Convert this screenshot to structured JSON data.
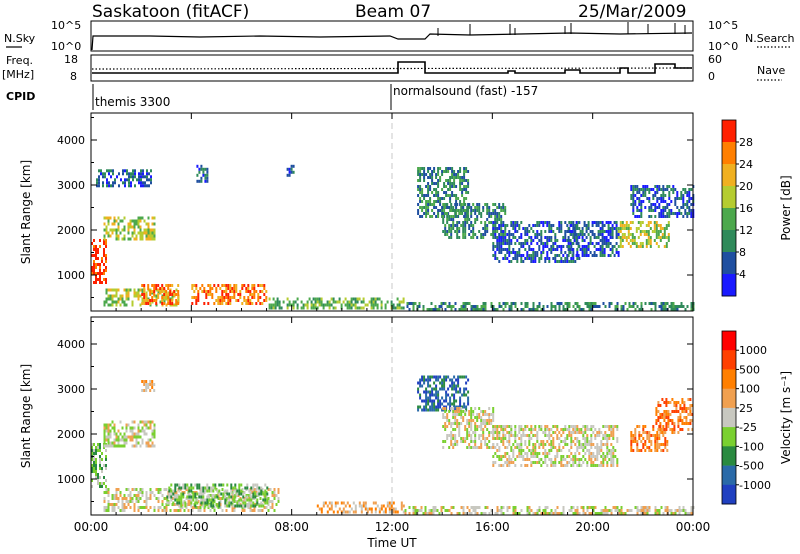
{
  "header": {
    "station": "Saskatoon (fitACF)",
    "beam": "Beam 07",
    "date": "25/Mar/2009"
  },
  "top_panel": {
    "left_label": "N.Sky",
    "left_ticks": [
      "10^5",
      "10^0"
    ],
    "right_label": "N.Search",
    "right_ticks": [
      "10^5",
      "10^0"
    ]
  },
  "freq_panel": {
    "left_label_1": "Freq.",
    "left_label_2": "[MHz]",
    "left_ticks": [
      "18",
      "8"
    ],
    "right_label": "Nave",
    "right_ticks": [
      "60",
      "0"
    ],
    "cpid_label": "CPID",
    "cpid_segments": [
      {
        "start_hour": 0,
        "name": "themis 3300"
      },
      {
        "start_hour": 12,
        "name": "normalsound (fast) -157"
      }
    ]
  },
  "chart_data": [
    {
      "type": "heatmap",
      "quantity": "power",
      "ylabel": "Slant Range [km]",
      "xlim": [
        0,
        24
      ],
      "ylim": [
        200,
        4600
      ],
      "yticks": [
        1000,
        2000,
        3000,
        4000
      ],
      "colorbar": {
        "label": "Power [dB]",
        "ticks": [
          "4",
          "8",
          "12",
          "16",
          "20",
          "24",
          "28"
        ],
        "colors": [
          "#1a1aff",
          "#1f4fa0",
          "#2f8a5a",
          "#4ca84c",
          "#b5cc30",
          "#f0b020",
          "#ff7f00",
          "#ff2000"
        ]
      },
      "echo_regions": [
        {
          "t0": 0.0,
          "t1": 0.6,
          "r0": 800,
          "r1": 1800,
          "level": 7
        },
        {
          "t0": 0.5,
          "t1": 2.5,
          "r0": 1800,
          "r1": 2300,
          "level": 4
        },
        {
          "t0": 0.2,
          "t1": 2.4,
          "r0": 2950,
          "r1": 3350,
          "level": 1
        },
        {
          "t0": 0.5,
          "t1": 3.5,
          "r0": 300,
          "r1": 700,
          "level": 4
        },
        {
          "t0": 2.0,
          "t1": 3.5,
          "r0": 350,
          "r1": 800,
          "level": 6
        },
        {
          "t0": 4.0,
          "t1": 7.0,
          "r0": 350,
          "r1": 800,
          "level": 6
        },
        {
          "t0": 7.0,
          "t1": 12.5,
          "r0": 250,
          "r1": 500,
          "level": 3
        },
        {
          "t0": 4.2,
          "t1": 4.6,
          "r0": 3100,
          "r1": 3450,
          "level": 1
        },
        {
          "t0": 7.8,
          "t1": 8.1,
          "r0": 3200,
          "r1": 3450,
          "level": 1
        },
        {
          "t0": 12.5,
          "t1": 24.0,
          "r0": 250,
          "r1": 400,
          "level": 2
        },
        {
          "t0": 13.0,
          "t1": 15.0,
          "r0": 2300,
          "r1": 3400,
          "level": 2
        },
        {
          "t0": 14.0,
          "t1": 16.5,
          "r0": 1800,
          "r1": 2600,
          "level": 2
        },
        {
          "t0": 16.0,
          "t1": 19.5,
          "r0": 1300,
          "r1": 2200,
          "level": 1
        },
        {
          "t0": 19.0,
          "t1": 21.0,
          "r0": 1400,
          "r1": 2200,
          "level": 1
        },
        {
          "t0": 21.0,
          "t1": 23.0,
          "r0": 1600,
          "r1": 2200,
          "level": 4
        },
        {
          "t0": 21.5,
          "t1": 24.0,
          "r0": 2300,
          "r1": 3000,
          "level": 1
        }
      ]
    },
    {
      "type": "heatmap",
      "quantity": "velocity",
      "ylabel": "Slant Range [km]",
      "xlabel": "Time UT",
      "xlim": [
        0,
        24
      ],
      "ylim": [
        200,
        4600
      ],
      "yticks": [
        1000,
        2000,
        3000,
        4000
      ],
      "xticks": [
        "00:00",
        "04:00",
        "08:00",
        "12:00",
        "16:00",
        "20:00",
        "00:00"
      ],
      "colorbar": {
        "label": "Velocity [m s⁻¹]",
        "ticks": [
          "1000",
          "500",
          "100",
          "25",
          "-25",
          "-100",
          "-500",
          "-1000"
        ],
        "colors": [
          "#2040c0",
          "#2a6aa8",
          "#2a8a40",
          "#7ad030",
          "#c8c8c0",
          "#f0a050",
          "#ff7f00",
          "#ff4000",
          "#ff0000"
        ]
      },
      "echo_regions": [
        {
          "t0": 0.0,
          "t1": 0.6,
          "r0": 800,
          "r1": 1800,
          "level": 3
        },
        {
          "t0": 0.5,
          "t1": 2.5,
          "r0": 1700,
          "r1": 2300,
          "level": 4
        },
        {
          "t0": 2.0,
          "t1": 2.5,
          "r0": 2950,
          "r1": 3200,
          "level": 5
        },
        {
          "t0": 0.5,
          "t1": 7.5,
          "r0": 300,
          "r1": 800,
          "level": 4
        },
        {
          "t0": 3.0,
          "t1": 7.0,
          "r0": 400,
          "r1": 900,
          "level": 3
        },
        {
          "t0": 9.0,
          "t1": 12.5,
          "r0": 250,
          "r1": 500,
          "level": 5
        },
        {
          "t0": 12.5,
          "t1": 24.0,
          "r0": 250,
          "r1": 400,
          "level": 4
        },
        {
          "t0": 13.0,
          "t1": 15.0,
          "r0": 2500,
          "r1": 3300,
          "level": 1
        },
        {
          "t0": 14.0,
          "t1": 16.0,
          "r0": 1700,
          "r1": 2600,
          "level": 4
        },
        {
          "t0": 16.0,
          "t1": 21.0,
          "r0": 1300,
          "r1": 2200,
          "level": 4
        },
        {
          "t0": 21.5,
          "t1": 23.0,
          "r0": 1600,
          "r1": 2200,
          "level": 6
        },
        {
          "t0": 22.5,
          "t1": 24.0,
          "r0": 2000,
          "r1": 2800,
          "level": 6
        }
      ]
    }
  ]
}
